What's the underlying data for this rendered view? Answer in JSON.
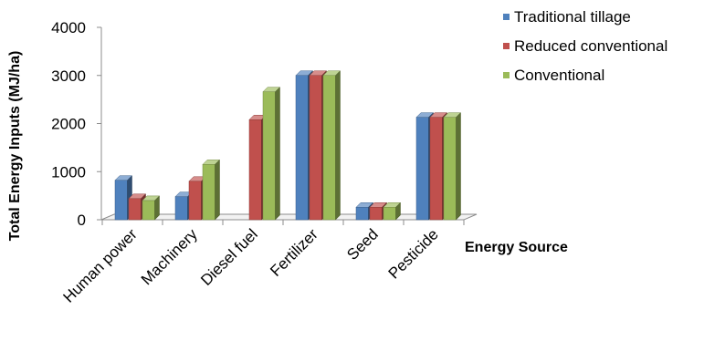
{
  "chart_data": {
    "type": "bar",
    "style": "3d-clustered",
    "categories": [
      "Human power",
      "Machinery",
      "Diesel fuel",
      "Fertilizer",
      "Seed",
      "Pesticide"
    ],
    "series": [
      {
        "name": "Traditional tillage",
        "color": "#4F81BD",
        "values": [
          820,
          480,
          0,
          3000,
          260,
          2130
        ]
      },
      {
        "name": "Reduced conventional",
        "color": "#C0504D",
        "values": [
          440,
          800,
          2080,
          3000,
          260,
          2130
        ]
      },
      {
        "name": "Conventional",
        "color": "#9BBB59",
        "values": [
          400,
          1150,
          2660,
          3000,
          260,
          2130
        ]
      }
    ],
    "ylabel": "Total Energy Inputs (MJ/ha)",
    "xlabel": "Energy Source",
    "ylim": [
      0,
      4000
    ],
    "yticks": [
      0,
      1000,
      2000,
      3000,
      4000
    ],
    "grid": false,
    "legend_position": "top-right"
  }
}
